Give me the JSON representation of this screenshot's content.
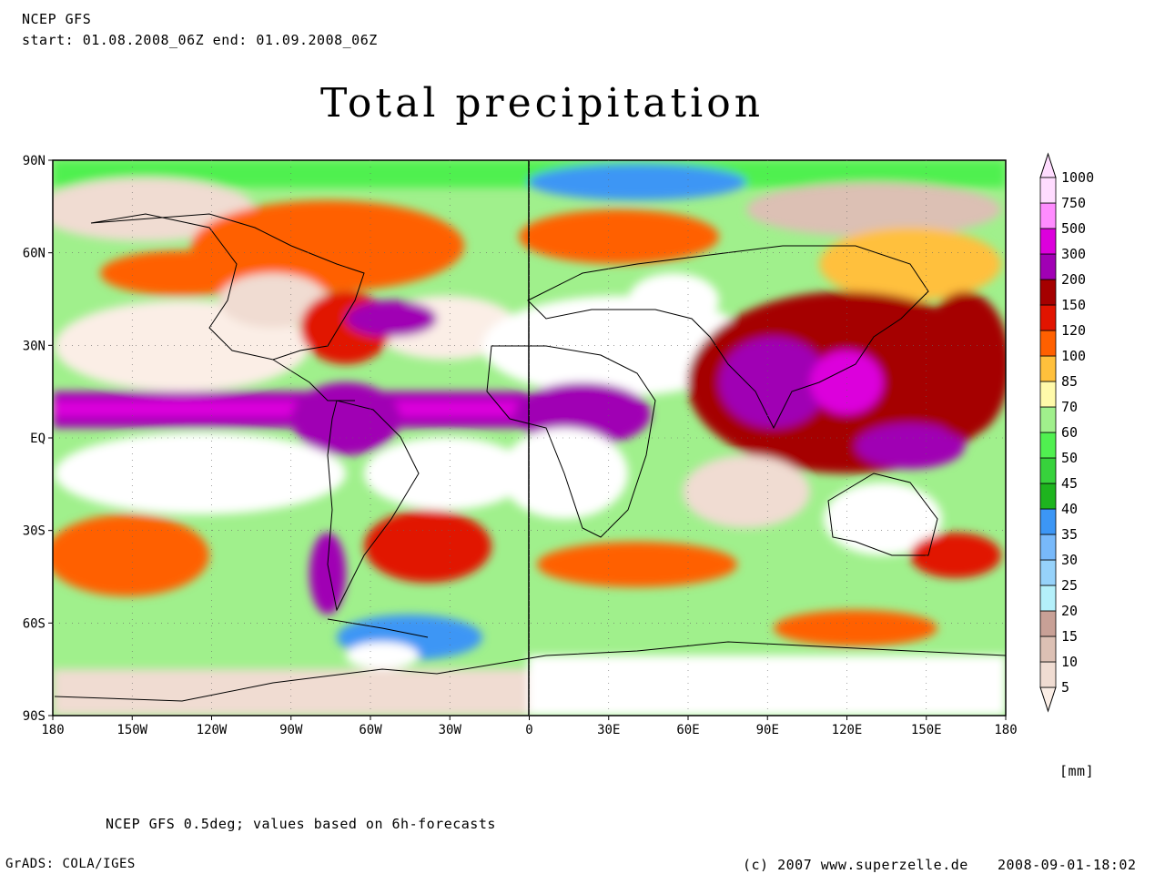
{
  "header": {
    "model": "NCEP GFS",
    "period": "start: 01.08.2008_06Z end: 01.09.2008_06Z"
  },
  "title": "Total precipitation",
  "map": {
    "y_ticks": [
      "90N",
      "60N",
      "30N",
      "EQ",
      "30S",
      "60S",
      "90S"
    ],
    "x_ticks": [
      "180",
      "150W",
      "120W",
      "90W",
      "60W",
      "30W",
      "0",
      "30E",
      "60E",
      "90E",
      "120E",
      "150E",
      "180"
    ]
  },
  "colorbar": {
    "unit": "[mm]",
    "levels": [
      {
        "label": "5",
        "color": "#fbeee6"
      },
      {
        "label": "10",
        "color": "#f0dcd2"
      },
      {
        "label": "15",
        "color": "#dcc0b4"
      },
      {
        "label": "20",
        "color": "#c8a096"
      },
      {
        "label": "25",
        "color": "#b4f0fa"
      },
      {
        "label": "30",
        "color": "#96d2fa"
      },
      {
        "label": "35",
        "color": "#78b9fa"
      },
      {
        "label": "40",
        "color": "#3c96f5"
      },
      {
        "label": "45",
        "color": "#1eb41e"
      },
      {
        "label": "50",
        "color": "#37d23c"
      },
      {
        "label": "60",
        "color": "#50f050"
      },
      {
        "label": "70",
        "color": "#a0f08c"
      },
      {
        "label": "85",
        "color": "#fffaaa"
      },
      {
        "label": "100",
        "color": "#ffc03c"
      },
      {
        "label": "120",
        "color": "#ff6000"
      },
      {
        "label": "150",
        "color": "#e11400"
      },
      {
        "label": "200",
        "color": "#a50000"
      },
      {
        "label": "300",
        "color": "#a000b4"
      },
      {
        "label": "500",
        "color": "#dc00dc"
      },
      {
        "label": "750",
        "color": "#ff8cff"
      },
      {
        "label": "1000",
        "color": "#ffdcff"
      }
    ]
  },
  "footer": {
    "note": "NCEP GFS 0.5deg; values based on 6h-forecasts",
    "software": "GrADS: COLA/IGES",
    "copyright": "(c) 2007 www.superzelle.de",
    "timestamp": "2008-09-01-18:02"
  }
}
